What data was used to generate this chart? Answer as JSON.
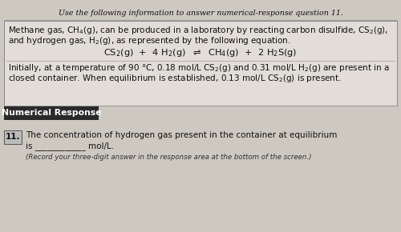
{
  "bg_color": "#cdc8c0",
  "title_text": "Use the following information to answer numerical-response question 11.",
  "main_box_bg": "#e2ddd8",
  "nr_label": "Numerical Response",
  "nr_bg": "#2a2a2a",
  "nr_text_color": "#ffffff",
  "q_num": "11.",
  "q_text_line1": "The concentration of hydrogen gas present in the container at equilibrium",
  "q_text_line2": "is ____________ mol/L.",
  "q_note": "(Record your three-digit answer in the response area at the bottom of the screen.)",
  "box_num_bg": "#bbbbbb",
  "font_size_title": 6.8,
  "font_size_main": 7.5,
  "font_size_eq": 8.2,
  "font_size_nr_label": 7.8,
  "font_size_q": 7.5,
  "font_size_note": 6.2,
  "separator_color": "#999999",
  "box_edge_color": "#888888"
}
